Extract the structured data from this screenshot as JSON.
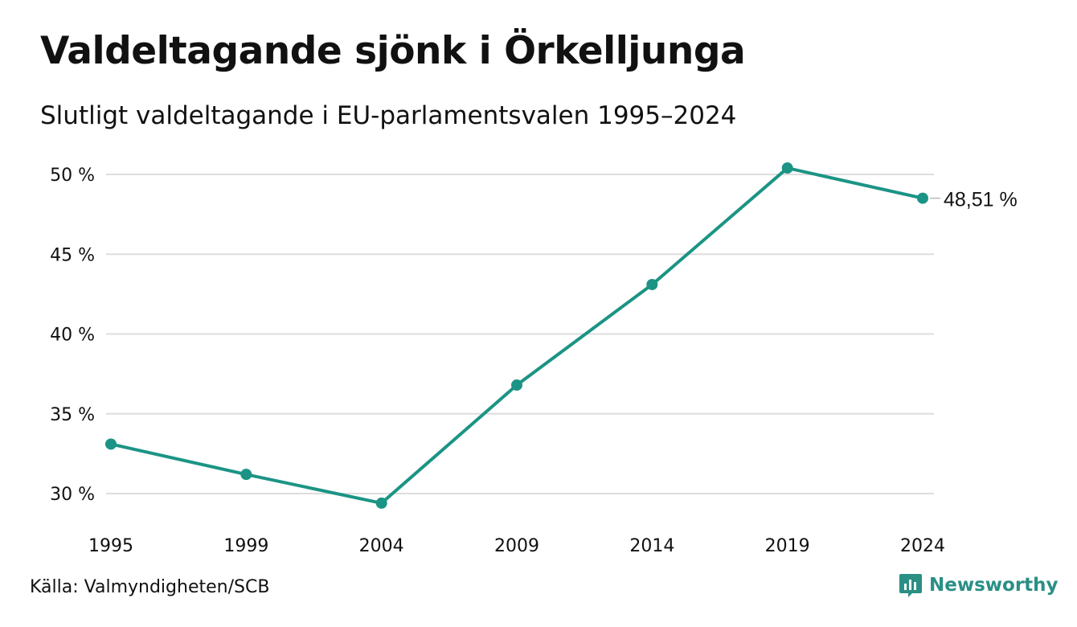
{
  "header": {
    "title": "Valdeltagande sjönk i Örkelljunga",
    "subtitle": "Slutligt valdeltagande i EU-parlamentsvalen 1995–2024"
  },
  "footer": {
    "source": "Källa: Valmyndigheten/SCB",
    "brand": "Newsworthy",
    "brand_icon": "newsworthy-logo-icon"
  },
  "colors": {
    "line": "#1b9485",
    "grid": "#dddddd",
    "text": "#111111",
    "brand": "#2a8f85"
  },
  "chart_data": {
    "type": "line",
    "title": "Valdeltagande sjönk i Örkelljunga",
    "subtitle": "Slutligt valdeltagande i EU-parlamentsvalen 1995–2024",
    "categories": [
      "1995",
      "1999",
      "2004",
      "2009",
      "2014",
      "2019",
      "2024"
    ],
    "series": [
      {
        "values": [
          33.1,
          31.2,
          29.4,
          36.8,
          43.1,
          50.4,
          48.51
        ]
      }
    ],
    "ylim": [
      30,
      50
    ],
    "yticks": [
      50,
      45,
      40,
      35,
      30
    ],
    "ytick_labels": [
      "50 %",
      "45 %",
      "40 %",
      "35 %",
      "30 %"
    ],
    "end_label": "48,51 %",
    "grid": true,
    "legend": "none"
  }
}
